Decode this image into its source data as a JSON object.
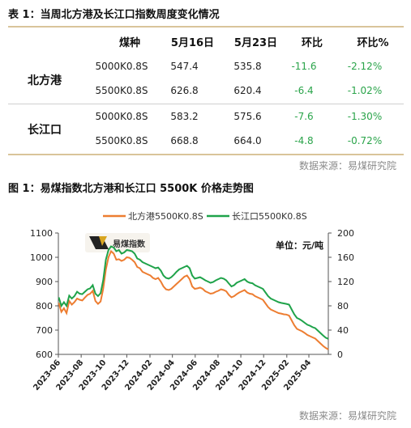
{
  "table": {
    "caption": "表 1：当周北方港及长江口指数周度变化情况",
    "headers": [
      "煤种",
      "5月16日",
      "5月23日",
      "环比",
      "环比%"
    ],
    "groups": [
      {
        "port": "北方港",
        "rows": [
          {
            "coal": "5000K0.8S",
            "may16": "547.4",
            "may23": "535.8",
            "wow": "-11.6",
            "wow_pct": "-2.12%"
          },
          {
            "coal": "5500K0.8S",
            "may16": "626.8",
            "may23": "620.4",
            "wow": "-6.4",
            "wow_pct": "-1.02%"
          }
        ]
      },
      {
        "port": "长江口",
        "rows": [
          {
            "coal": "5000K0.8S",
            "may16": "583.2",
            "may23": "575.6",
            "wow": "-7.6",
            "wow_pct": "-1.30%"
          },
          {
            "coal": "5500K0.8S",
            "may16": "668.8",
            "may23": "664.0",
            "wow": "-4.8",
            "wow_pct": "-0.72%"
          }
        ]
      }
    ],
    "source": "数据来源：易煤研究院",
    "colors": {
      "accent_rule": "#d9c49a",
      "negative_change": "#2aa44a"
    }
  },
  "figure": {
    "caption": "图 1：易煤指数北方港和长江口 5500K 价格走势图",
    "source": "数据来源：易煤研究院",
    "watermark_text": "易煤指数"
  },
  "chart_data": {
    "type": "line",
    "title": "",
    "unit_label": "单位：元/吨",
    "legend_position": "top-center",
    "grid": false,
    "ylim_left": [
      600,
      1100
    ],
    "yticks_left": [
      "600",
      "700",
      "800",
      "900",
      "1000",
      "1100"
    ],
    "ylim_right": [
      0,
      200
    ],
    "yticks_right": [
      "0",
      "40",
      "80",
      "120",
      "160",
      "200"
    ],
    "xticks": [
      "2023-06",
      "2023-08",
      "2023-10",
      "2023-12",
      "2024-02",
      "2024-04",
      "2024-06",
      "2024-08",
      "2024-10",
      "2024-12",
      "2025-02",
      "2025-04"
    ],
    "x_start": "2023-06-01",
    "x_end": "2025-05-23",
    "series": [
      {
        "name": "北方港5500K0.8S",
        "color": "#ed7d31",
        "points": [
          [
            "2023-06-02",
            812
          ],
          [
            "2023-06-09",
            775
          ],
          [
            "2023-06-16",
            790
          ],
          [
            "2023-06-23",
            770
          ],
          [
            "2023-06-30",
            820
          ],
          [
            "2023-07-07",
            805
          ],
          [
            "2023-07-14",
            815
          ],
          [
            "2023-07-21",
            830
          ],
          [
            "2023-07-28",
            825
          ],
          [
            "2023-08-04",
            822
          ],
          [
            "2023-08-11",
            834
          ],
          [
            "2023-08-18",
            845
          ],
          [
            "2023-08-25",
            850
          ],
          [
            "2023-09-01",
            862
          ],
          [
            "2023-09-08",
            820
          ],
          [
            "2023-09-15",
            808
          ],
          [
            "2023-09-22",
            818
          ],
          [
            "2023-09-29",
            870
          ],
          [
            "2023-10-06",
            950
          ],
          [
            "2023-10-13",
            1000
          ],
          [
            "2023-10-20",
            1025
          ],
          [
            "2023-10-27",
            1015
          ],
          [
            "2023-11-03",
            990
          ],
          [
            "2023-11-10",
            992
          ],
          [
            "2023-11-17",
            985
          ],
          [
            "2023-11-24",
            990
          ],
          [
            "2023-12-01",
            1000
          ],
          [
            "2023-12-08",
            998
          ],
          [
            "2023-12-15",
            990
          ],
          [
            "2023-12-22",
            980
          ],
          [
            "2023-12-29",
            960
          ],
          [
            "2024-01-05",
            955
          ],
          [
            "2024-01-12",
            940
          ],
          [
            "2024-01-19",
            935
          ],
          [
            "2024-01-26",
            930
          ],
          [
            "2024-02-02",
            925
          ],
          [
            "2024-02-09",
            915
          ],
          [
            "2024-02-16",
            910
          ],
          [
            "2024-02-23",
            915
          ],
          [
            "2024-03-01",
            900
          ],
          [
            "2024-03-08",
            880
          ],
          [
            "2024-03-15",
            868
          ],
          [
            "2024-03-22",
            865
          ],
          [
            "2024-03-29",
            870
          ],
          [
            "2024-04-05",
            880
          ],
          [
            "2024-04-12",
            890
          ],
          [
            "2024-04-19",
            900
          ],
          [
            "2024-04-26",
            910
          ],
          [
            "2024-05-03",
            920
          ],
          [
            "2024-05-10",
            925
          ],
          [
            "2024-05-17",
            910
          ],
          [
            "2024-05-24",
            880
          ],
          [
            "2024-05-31",
            870
          ],
          [
            "2024-06-07",
            872
          ],
          [
            "2024-06-14",
            875
          ],
          [
            "2024-06-21",
            870
          ],
          [
            "2024-06-28",
            860
          ],
          [
            "2024-07-05",
            855
          ],
          [
            "2024-07-12",
            850
          ],
          [
            "2024-07-19",
            852
          ],
          [
            "2024-07-26",
            858
          ],
          [
            "2024-08-02",
            862
          ],
          [
            "2024-08-09",
            868
          ],
          [
            "2024-08-16",
            865
          ],
          [
            "2024-08-23",
            860
          ],
          [
            "2024-08-30",
            845
          ],
          [
            "2024-09-06",
            835
          ],
          [
            "2024-09-13",
            840
          ],
          [
            "2024-09-20",
            848
          ],
          [
            "2024-09-27",
            855
          ],
          [
            "2024-10-04",
            860
          ],
          [
            "2024-10-11",
            865
          ],
          [
            "2024-10-18",
            855
          ],
          [
            "2024-10-25",
            850
          ],
          [
            "2024-11-01",
            848
          ],
          [
            "2024-11-08",
            840
          ],
          [
            "2024-11-15",
            835
          ],
          [
            "2024-11-22",
            830
          ],
          [
            "2024-11-29",
            825
          ],
          [
            "2024-12-06",
            810
          ],
          [
            "2024-12-13",
            795
          ],
          [
            "2024-12-20",
            785
          ],
          [
            "2024-12-27",
            780
          ],
          [
            "2025-01-03",
            775
          ],
          [
            "2025-01-10",
            770
          ],
          [
            "2025-01-17",
            768
          ],
          [
            "2025-01-24",
            765
          ],
          [
            "2025-01-31",
            764
          ],
          [
            "2025-02-07",
            760
          ],
          [
            "2025-02-14",
            740
          ],
          [
            "2025-02-21",
            720
          ],
          [
            "2025-02-28",
            705
          ],
          [
            "2025-03-07",
            700
          ],
          [
            "2025-03-14",
            695
          ],
          [
            "2025-03-21",
            688
          ],
          [
            "2025-03-28",
            680
          ],
          [
            "2025-04-04",
            675
          ],
          [
            "2025-04-11",
            670
          ],
          [
            "2025-04-18",
            665
          ],
          [
            "2025-04-25",
            655
          ],
          [
            "2025-05-02",
            645
          ],
          [
            "2025-05-09",
            635
          ],
          [
            "2025-05-16",
            626.8
          ],
          [
            "2025-05-23",
            620.4
          ]
        ]
      },
      {
        "name": "长江口5500K0.8S",
        "color": "#1fa34a",
        "points": [
          [
            "2023-06-02",
            835
          ],
          [
            "2023-06-09",
            800
          ],
          [
            "2023-06-16",
            815
          ],
          [
            "2023-06-23",
            800
          ],
          [
            "2023-06-30",
            842
          ],
          [
            "2023-07-07",
            830
          ],
          [
            "2023-07-14",
            840
          ],
          [
            "2023-07-21",
            858
          ],
          [
            "2023-07-28",
            850
          ],
          [
            "2023-08-04",
            848
          ],
          [
            "2023-08-11",
            858
          ],
          [
            "2023-08-18",
            868
          ],
          [
            "2023-08-25",
            872
          ],
          [
            "2023-09-01",
            885
          ],
          [
            "2023-09-08",
            850
          ],
          [
            "2023-09-15",
            840
          ],
          [
            "2023-09-22",
            852
          ],
          [
            "2023-09-29",
            905
          ],
          [
            "2023-10-06",
            990
          ],
          [
            "2023-10-13",
            1030
          ],
          [
            "2023-10-20",
            1045
          ],
          [
            "2023-10-27",
            1040
          ],
          [
            "2023-11-03",
            1025
          ],
          [
            "2023-11-10",
            1030
          ],
          [
            "2023-11-17",
            1015
          ],
          [
            "2023-11-24",
            1020
          ],
          [
            "2023-12-01",
            1030
          ],
          [
            "2023-12-08",
            1028
          ],
          [
            "2023-12-15",
            1025
          ],
          [
            "2023-12-22",
            1015
          ],
          [
            "2023-12-29",
            995
          ],
          [
            "2024-01-05",
            990
          ],
          [
            "2024-01-12",
            980
          ],
          [
            "2024-01-19",
            975
          ],
          [
            "2024-01-26",
            970
          ],
          [
            "2024-02-02",
            965
          ],
          [
            "2024-02-09",
            960
          ],
          [
            "2024-02-16",
            955
          ],
          [
            "2024-02-23",
            958
          ],
          [
            "2024-03-01",
            945
          ],
          [
            "2024-03-08",
            925
          ],
          [
            "2024-03-15",
            915
          ],
          [
            "2024-03-22",
            912
          ],
          [
            "2024-03-29",
            918
          ],
          [
            "2024-04-05",
            928
          ],
          [
            "2024-04-12",
            940
          ],
          [
            "2024-04-19",
            950
          ],
          [
            "2024-04-26",
            955
          ],
          [
            "2024-05-03",
            960
          ],
          [
            "2024-05-10",
            965
          ],
          [
            "2024-05-17",
            955
          ],
          [
            "2024-05-24",
            925
          ],
          [
            "2024-05-31",
            912
          ],
          [
            "2024-06-07",
            915
          ],
          [
            "2024-06-14",
            918
          ],
          [
            "2024-06-21",
            912
          ],
          [
            "2024-06-28",
            905
          ],
          [
            "2024-07-05",
            900
          ],
          [
            "2024-07-12",
            895
          ],
          [
            "2024-07-19",
            898
          ],
          [
            "2024-07-26",
            905
          ],
          [
            "2024-08-02",
            910
          ],
          [
            "2024-08-09",
            915
          ],
          [
            "2024-08-16",
            912
          ],
          [
            "2024-08-23",
            905
          ],
          [
            "2024-08-30",
            892
          ],
          [
            "2024-09-06",
            880
          ],
          [
            "2024-09-13",
            885
          ],
          [
            "2024-09-20",
            895
          ],
          [
            "2024-09-27",
            900
          ],
          [
            "2024-10-04",
            905
          ],
          [
            "2024-10-11",
            910
          ],
          [
            "2024-10-18",
            900
          ],
          [
            "2024-10-25",
            895
          ],
          [
            "2024-11-01",
            893
          ],
          [
            "2024-11-08",
            885
          ],
          [
            "2024-11-15",
            880
          ],
          [
            "2024-11-22",
            875
          ],
          [
            "2024-11-29",
            870
          ],
          [
            "2024-12-06",
            855
          ],
          [
            "2024-12-13",
            840
          ],
          [
            "2024-12-20",
            830
          ],
          [
            "2024-12-27",
            825
          ],
          [
            "2025-01-03",
            820
          ],
          [
            "2025-01-10",
            815
          ],
          [
            "2025-01-17",
            812
          ],
          [
            "2025-01-24",
            810
          ],
          [
            "2025-01-31",
            808
          ],
          [
            "2025-02-07",
            805
          ],
          [
            "2025-02-14",
            785
          ],
          [
            "2025-02-21",
            765
          ],
          [
            "2025-02-28",
            750
          ],
          [
            "2025-03-07",
            745
          ],
          [
            "2025-03-14",
            738
          ],
          [
            "2025-03-21",
            730
          ],
          [
            "2025-03-28",
            722
          ],
          [
            "2025-04-04",
            718
          ],
          [
            "2025-04-11",
            712
          ],
          [
            "2025-04-18",
            708
          ],
          [
            "2025-04-25",
            698
          ],
          [
            "2025-05-02",
            688
          ],
          [
            "2025-05-09",
            678
          ],
          [
            "2025-05-16",
            668.8
          ],
          [
            "2025-05-23",
            664.0
          ]
        ]
      }
    ]
  }
}
